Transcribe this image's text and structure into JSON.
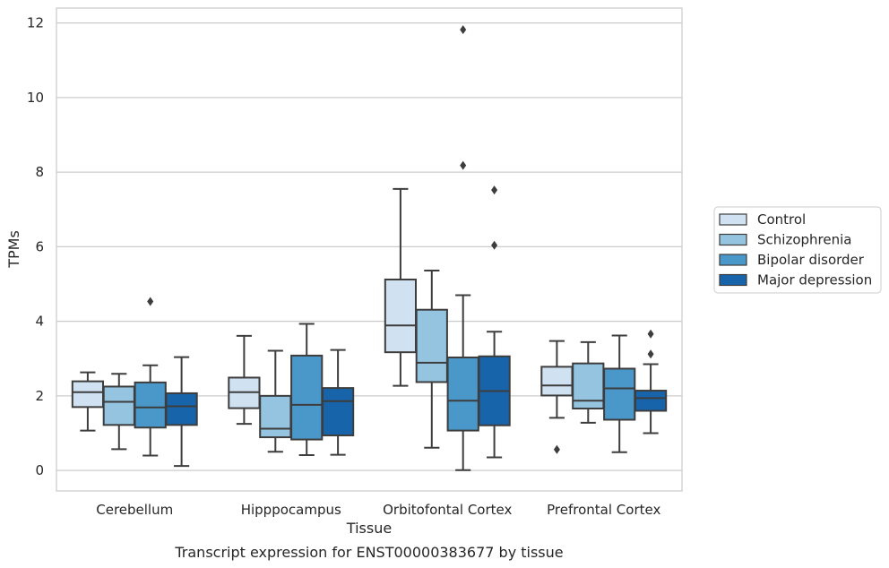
{
  "chart_data": {
    "type": "boxplot",
    "title": "Transcript expression for ENST00000383677 by tissue",
    "xlabel": "Tissue",
    "ylabel": "TPMs",
    "ylim": [
      -0.55,
      12.4
    ],
    "yticks": [
      0,
      2,
      4,
      6,
      8,
      10,
      12
    ],
    "grid": true,
    "legend_position": "right",
    "categories": [
      "Cerebellum",
      "Hipppocampus",
      "Orbitofontal Cortex",
      "Prefrontal Cortex"
    ],
    "series": [
      {
        "name": "Control",
        "color": "#d0e1f2",
        "boxes": [
          {
            "whislo": 1.07,
            "q1": 1.7,
            "med": 2.1,
            "q3": 2.39,
            "whishi": 2.63,
            "fliers": []
          },
          {
            "whislo": 1.25,
            "q1": 1.67,
            "med": 2.1,
            "q3": 2.49,
            "whishi": 3.61,
            "fliers": []
          },
          {
            "whislo": 2.27,
            "q1": 3.17,
            "med": 3.89,
            "q3": 5.12,
            "whishi": 7.55,
            "fliers": []
          },
          {
            "whislo": 1.41,
            "q1": 2.01,
            "med": 2.28,
            "q3": 2.78,
            "whishi": 3.47,
            "fliers": [
              0.56
            ]
          }
        ]
      },
      {
        "name": "Schizophrenia",
        "color": "#94c4df",
        "boxes": [
          {
            "whislo": 0.57,
            "q1": 1.22,
            "med": 1.84,
            "q3": 2.25,
            "whishi": 2.59,
            "fliers": []
          },
          {
            "whislo": 0.5,
            "q1": 0.89,
            "med": 1.12,
            "q3": 2.0,
            "whishi": 3.21,
            "fliers": []
          },
          {
            "whislo": 0.61,
            "q1": 2.37,
            "med": 2.89,
            "q3": 4.31,
            "whishi": 5.36,
            "fliers": []
          },
          {
            "whislo": 1.28,
            "q1": 1.66,
            "med": 1.87,
            "q3": 2.87,
            "whishi": 3.44,
            "fliers": []
          }
        ]
      },
      {
        "name": "Bipolar disorder",
        "color": "#4a98c9",
        "boxes": [
          {
            "whislo": 0.4,
            "q1": 1.15,
            "med": 1.69,
            "q3": 2.36,
            "whishi": 2.82,
            "fliers": [
              4.53
            ]
          },
          {
            "whislo": 0.41,
            "q1": 0.83,
            "med": 1.76,
            "q3": 3.08,
            "whishi": 3.93,
            "fliers": []
          },
          {
            "whislo": 0.01,
            "q1": 1.07,
            "med": 1.87,
            "q3": 3.03,
            "whishi": 4.7,
            "fliers": [
              8.18,
              11.82
            ]
          },
          {
            "whislo": 0.49,
            "q1": 1.36,
            "med": 2.2,
            "q3": 2.73,
            "whishi": 3.62,
            "fliers": []
          }
        ]
      },
      {
        "name": "Major depression",
        "color": "#1764ab",
        "boxes": [
          {
            "whislo": 0.12,
            "q1": 1.22,
            "med": 1.72,
            "q3": 2.07,
            "whishi": 3.04,
            "fliers": []
          },
          {
            "whislo": 0.42,
            "q1": 0.94,
            "med": 1.86,
            "q3": 2.21,
            "whishi": 3.23,
            "fliers": []
          },
          {
            "whislo": 0.35,
            "q1": 1.21,
            "med": 2.13,
            "q3": 3.06,
            "whishi": 3.72,
            "fliers": [
              6.04,
              7.52
            ]
          },
          {
            "whislo": 1.0,
            "q1": 1.6,
            "med": 1.94,
            "q3": 2.14,
            "whishi": 2.85,
            "fliers": [
              3.12,
              3.66
            ]
          }
        ]
      }
    ]
  }
}
